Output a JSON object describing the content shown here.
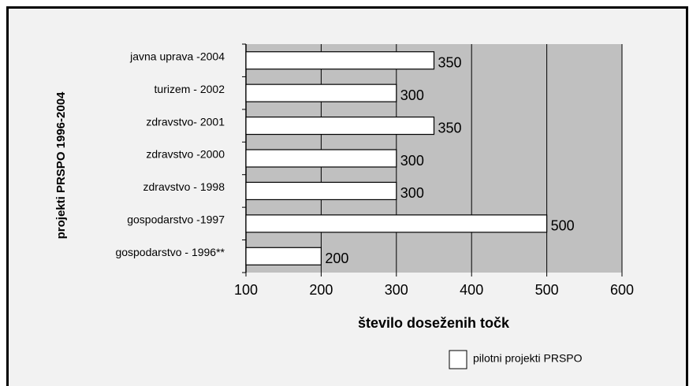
{
  "chart_data": {
    "type": "barh",
    "axis_label_y": "projekti PRSPO 1996-2004",
    "axis_label_x": "število doseženih točk",
    "categories": [
      "javna uprava -2004",
      "turizem - 2002",
      "zdravstvo- 2001",
      "zdravstvo -2000",
      "zdravstvo - 1998",
      "gospodarstvo -1997",
      "gospodarstvo - 1996**"
    ],
    "series": [
      {
        "name": "pilotni projekti PRSPO",
        "color": "#ffffff",
        "values": [
          350,
          300,
          350,
          300,
          300,
          500,
          200
        ]
      }
    ],
    "xlim": [
      100,
      600
    ],
    "xticks": [
      100,
      200,
      300,
      400,
      500,
      600
    ],
    "grid": true,
    "plot_background": "#c0c0c0",
    "legend": "bottom-right"
  }
}
